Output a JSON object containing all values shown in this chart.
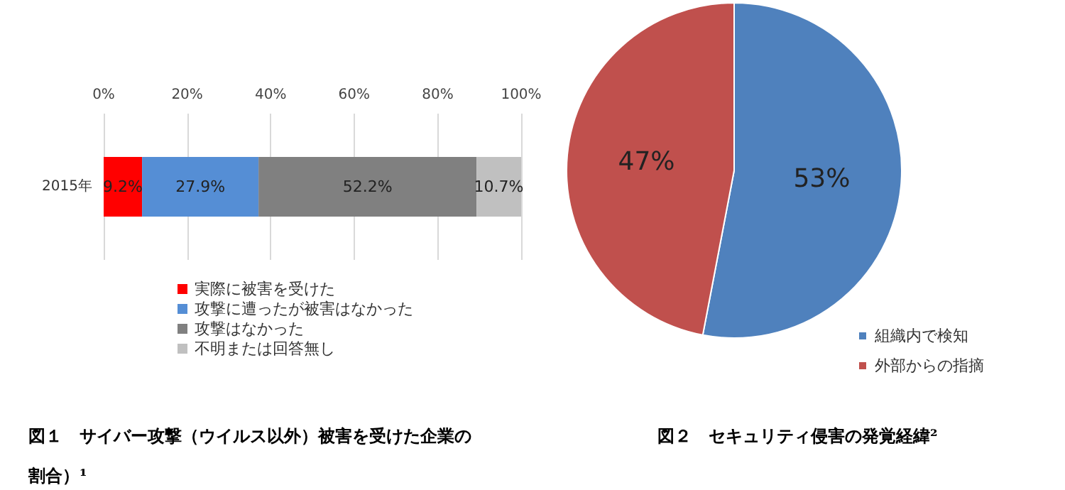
{
  "chart_data": [
    {
      "type": "bar",
      "title": "図１　サイバー攻撃（ウイルス以外）被害を受けた企業の割合）¹",
      "orientation": "horizontal",
      "stacked": true,
      "categories": [
        "2015年"
      ],
      "series": [
        {
          "name": "実際に被害を受けた",
          "color": "#ff0000",
          "values": [
            9.2
          ],
          "value_labels": [
            "9.2%"
          ]
        },
        {
          "name": "攻撃に遭ったが被害はなかった",
          "color": "#558ed5",
          "values": [
            27.9
          ],
          "value_labels": [
            "27.9%"
          ]
        },
        {
          "name": "攻撃はなかった",
          "color": "#808080",
          "values": [
            52.2
          ],
          "value_labels": [
            "52.2%"
          ]
        },
        {
          "name": "不明または回答無し",
          "color": "#c0c0c0",
          "values": [
            10.7
          ],
          "value_labels": [
            "10.7%"
          ]
        }
      ],
      "xlim": [
        0,
        100
      ],
      "xticks": [
        {
          "value": 0,
          "label": "0%"
        },
        {
          "value": 20,
          "label": "20%"
        },
        {
          "value": 40,
          "label": "40%"
        },
        {
          "value": 60,
          "label": "60%"
        },
        {
          "value": 80,
          "label": "80%"
        },
        {
          "value": 100,
          "label": "100%"
        }
      ],
      "grid": "x",
      "legend": "bottom"
    },
    {
      "type": "pie",
      "title": "図２　セキュリティ侵害の発覚経緯²",
      "categories": [
        "組織内で検知",
        "外部からの指摘"
      ],
      "values": [
        53,
        47
      ],
      "colors": [
        "#4f81bd",
        "#c0504d"
      ],
      "value_labels": [
        "53%",
        "47%"
      ],
      "legend": "bottom right"
    }
  ]
}
